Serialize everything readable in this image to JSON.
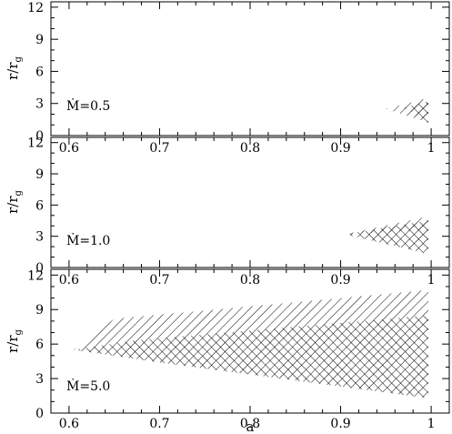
{
  "chart_data": [
    {
      "type": "area",
      "panel_label": "Ṁ=0.5",
      "ylabel_main": "r/r",
      "ylabel_sub": "g",
      "xlim": [
        0.58,
        1.02
      ],
      "ylim": [
        0,
        12.5
      ],
      "x_ticks": [],
      "y_ticks": [
        "0",
        "3",
        "6",
        "9",
        "12"
      ],
      "y_tick_values": [
        0,
        3,
        6,
        9,
        12
      ],
      "regions": [
        {
          "hatch": "single",
          "points": [
            [
              0.95,
              2.5
            ],
            [
              0.997,
              3.5
            ],
            [
              0.997,
              1.2
            ]
          ]
        },
        {
          "hatch": "cross",
          "points": [
            [
              0.97,
              2.6
            ],
            [
              0.997,
              3.2
            ],
            [
              0.997,
              1.2
            ]
          ]
        }
      ]
    },
    {
      "type": "area",
      "panel_label": "Ṁ=1.0",
      "ylabel_main": "r/r",
      "ylabel_sub": "g",
      "xlim": [
        0.58,
        1.02
      ],
      "ylim": [
        0,
        12.5
      ],
      "x_ticks": [
        "0.6",
        "0.7",
        "0.8",
        "0.9",
        "1"
      ],
      "x_tick_values": [
        0.6,
        0.7,
        0.8,
        0.9,
        1.0
      ],
      "y_ticks": [
        "0",
        "3",
        "6",
        "9",
        "12"
      ],
      "y_tick_values": [
        0,
        3,
        6,
        9,
        12
      ],
      "regions": [
        {
          "hatch": "single",
          "points": [
            [
              0.905,
              3.2
            ],
            [
              0.997,
              4.9
            ],
            [
              0.997,
              3.6
            ]
          ]
        },
        {
          "hatch": "cross",
          "points": [
            [
              0.905,
              3.2
            ],
            [
              0.997,
              4.5
            ],
            [
              0.997,
              1.3
            ]
          ]
        }
      ]
    },
    {
      "type": "area",
      "panel_label": "Ṁ=5.0",
      "ylabel_main": "r/r",
      "ylabel_sub": "g",
      "xlabel": "a",
      "xlim": [
        0.58,
        1.02
      ],
      "ylim": [
        0,
        12.5
      ],
      "x_ticks": [
        "0.6",
        "0.7",
        "0.8",
        "0.9",
        "1"
      ],
      "x_tick_values": [
        0.6,
        0.7,
        0.8,
        0.9,
        1.0
      ],
      "x_ticks_bottom": [
        "0.6",
        "0.7",
        "0.8",
        "0.9",
        "1"
      ],
      "y_ticks": [
        "0",
        "3",
        "6",
        "9",
        "12"
      ],
      "y_tick_values": [
        0,
        3,
        6,
        9,
        12
      ],
      "regions": [
        {
          "hatch": "single",
          "points": [
            [
              0.605,
              5.5
            ],
            [
              0.65,
              8.2
            ],
            [
              0.997,
              10.7
            ],
            [
              0.997,
              8.5
            ],
            [
              0.67,
              6.3
            ]
          ]
        },
        {
          "hatch": "cross",
          "points": [
            [
              0.605,
              5.5
            ],
            [
              0.67,
              6.3
            ],
            [
              0.997,
              8.5
            ],
            [
              0.997,
              1.3
            ],
            [
              0.7,
              4.4
            ]
          ]
        }
      ]
    }
  ]
}
